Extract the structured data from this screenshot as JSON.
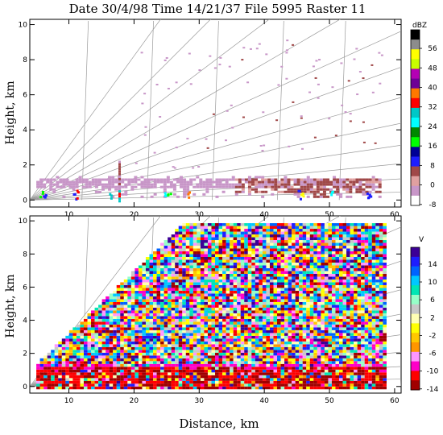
{
  "chart_data": [
    {
      "type": "heatmap",
      "title": "Date 30/4/98 Time 14/21/37 File 5995 Raster 11",
      "ylabel": "Height, km",
      "xlabel": "",
      "xlim": [
        4,
        61
      ],
      "ylim": [
        -0.4,
        10.3
      ],
      "x_ticks": [
        "10",
        "20",
        "30",
        "40",
        "50",
        "60"
      ],
      "y_ticks": [
        "0",
        "2",
        "4",
        "6",
        "8",
        "10"
      ],
      "colorbar": {
        "unit": "dBZ",
        "tick_labels": [
          "56",
          "48",
          "40",
          "32",
          "24",
          "16",
          "8",
          "0",
          "-8"
        ],
        "colors": [
          "#000000",
          "#8c8c8c",
          "#ffff00",
          "#c8ff00",
          "#b400b4",
          "#6e0096",
          "#ff7800",
          "#ff0000",
          "#00c8c8",
          "#00ffff",
          "#008800",
          "#00ff00",
          "#000096",
          "#1e1eff",
          "#a04848",
          "#e0a0a0",
          "#c896c8",
          "#ffffff"
        ]
      },
      "features": [
        {
          "kind": "layer",
          "x_from": 5,
          "x_to": 58,
          "y_from": 0.3,
          "y_to": 1.4,
          "color": "#c896c8"
        },
        {
          "kind": "layer",
          "x_from": 35,
          "x_to": 58,
          "y_from": 0.5,
          "y_to": 1.3,
          "color": "#a04848"
        },
        {
          "kind": "column",
          "x": 17.7,
          "y_from": 0,
          "y_to": 2.3,
          "color": "#c896c8"
        }
      ]
    },
    {
      "type": "heatmap",
      "title": "",
      "ylabel": "Height, km",
      "xlabel": "Distance, km",
      "xlim": [
        4,
        61
      ],
      "ylim": [
        -0.4,
        10.3
      ],
      "x_ticks": [
        "10",
        "20",
        "30",
        "40",
        "50",
        "60"
      ],
      "y_ticks": [
        "0",
        "2",
        "4",
        "6",
        "8",
        "10"
      ],
      "colorbar": {
        "unit": "V",
        "tick_labels": [
          "14",
          "10",
          "6",
          "2",
          "-2",
          "-6",
          "-10",
          "-14"
        ],
        "colors": [
          "#3c0096",
          "#1e1eff",
          "#0064ff",
          "#00c8ff",
          "#00e6b4",
          "#96ffc8",
          "#c8c8c8",
          "#ffffb4",
          "#ffff00",
          "#ffc800",
          "#ff9600",
          "#ff96ff",
          "#ff00c8",
          "#ff0000",
          "#a00000"
        ]
      },
      "data_region": {
        "x_from": 5,
        "x_to": 58.5,
        "y_from": 0,
        "y_to": 10,
        "top_edge_start_x": 5,
        "top_edge_start_y": 1.5,
        "top_edge_end_x": 27.5
      }
    }
  ]
}
